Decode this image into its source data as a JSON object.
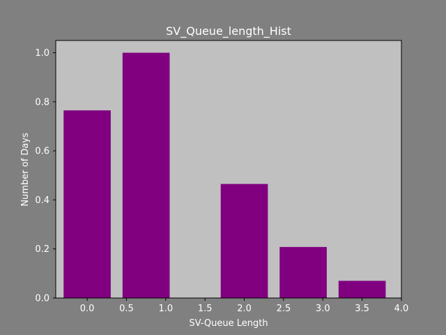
{
  "chart_data": {
    "type": "bar",
    "title": "SV_Queue_length_Hist",
    "xlabel": "SV-Queue Length",
    "ylabel": "Number of Days",
    "x": [
      0.0,
      0.75,
      2.0,
      2.75,
      3.5
    ],
    "values": [
      0.765,
      1.0,
      0.465,
      0.208,
      0.07
    ],
    "xlim": [
      -0.4,
      4.0
    ],
    "ylim": [
      0.0,
      1.05
    ],
    "xticks": [
      0.0,
      0.5,
      1.0,
      1.5,
      2.0,
      2.5,
      3.0,
      3.5,
      4.0
    ],
    "xtick_labels": [
      "0.0",
      "0.5",
      "1.0",
      "1.5",
      "2.0",
      "2.5",
      "3.0",
      "3.5",
      "4.0"
    ],
    "yticks": [
      0.0,
      0.2,
      0.4,
      0.6,
      0.8,
      1.0
    ],
    "ytick_labels": [
      "0.0",
      "0.2",
      "0.4",
      "0.6",
      "0.8",
      "1.0"
    ],
    "grid": false,
    "colors": {
      "figure_bg": "#808080",
      "plot_bg": "#c0c0c0",
      "bar": "#800080",
      "text": "#ffffff",
      "axis": "#000000"
    }
  }
}
